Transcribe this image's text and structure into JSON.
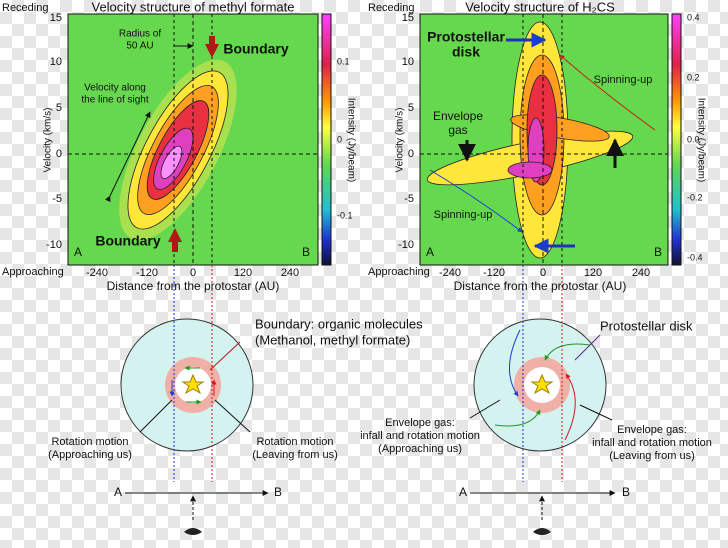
{
  "panels": [
    {
      "receding": "Receding",
      "title": "Velocity structure of methyl formate",
      "y_label": "Velocity (km/s)",
      "yticks": [
        "15",
        "10",
        "5",
        "0",
        "-5",
        "-10"
      ],
      "approaching": "Approaching",
      "xticks": [
        "-240",
        "-120",
        "0",
        "120",
        "240"
      ],
      "x_label": "Distance from the protostar (AU)",
      "colorbar_label": "Intensity (Jy/beam)",
      "colorbar_ticks": [
        "0.1",
        "0",
        "-0.1"
      ],
      "corner_a": "A",
      "corner_b": "B",
      "annotations": [
        "Radius of",
        "50 AU",
        "Boundary",
        "Velocity along",
        "the line of sight",
        "Boundary"
      ]
    },
    {
      "receding": "Receding",
      "title": "Velocity structure of H₂CS",
      "y_label": "Velocity (km/s)",
      "yticks": [
        "15",
        "10",
        "5",
        "0",
        "-5",
        "-10"
      ],
      "approaching": "Approaching",
      "xticks": [
        "-240",
        "-120",
        "0",
        "120",
        "240"
      ],
      "x_label": "Distance from the protostar (AU)",
      "colorbar_label": "Intensity (Jy/beam)",
      "colorbar_ticks": [
        "0.4",
        "0.2",
        "0.0",
        "-0.2",
        "-0.4"
      ],
      "corner_a": "A",
      "corner_b": "B",
      "annotations": [
        "Protostellar",
        "disk",
        "Spinning-up",
        "Envelope",
        "gas",
        "Spinning-up"
      ]
    }
  ],
  "diagrams": [
    {
      "title_lines": [
        "Boundary: organic molecules",
        "(Methanol, methyl formate)"
      ],
      "left_lines": [
        "Rotation motion",
        "(Approaching us)"
      ],
      "right_lines": [
        "Rotation motion",
        "(Leaving from us)"
      ],
      "axis_a": "A",
      "axis_b": "B"
    },
    {
      "title_lines": [
        "Protostellar disk"
      ],
      "left_lines": [
        "Envelope gas:",
        "infall and rotation motion",
        "(Approaching us)"
      ],
      "right_lines": [
        "Envelope gas:",
        "infall and rotation motion",
        "(Leaving from us)"
      ],
      "axis_a": "A",
      "axis_b": "B"
    }
  ]
}
